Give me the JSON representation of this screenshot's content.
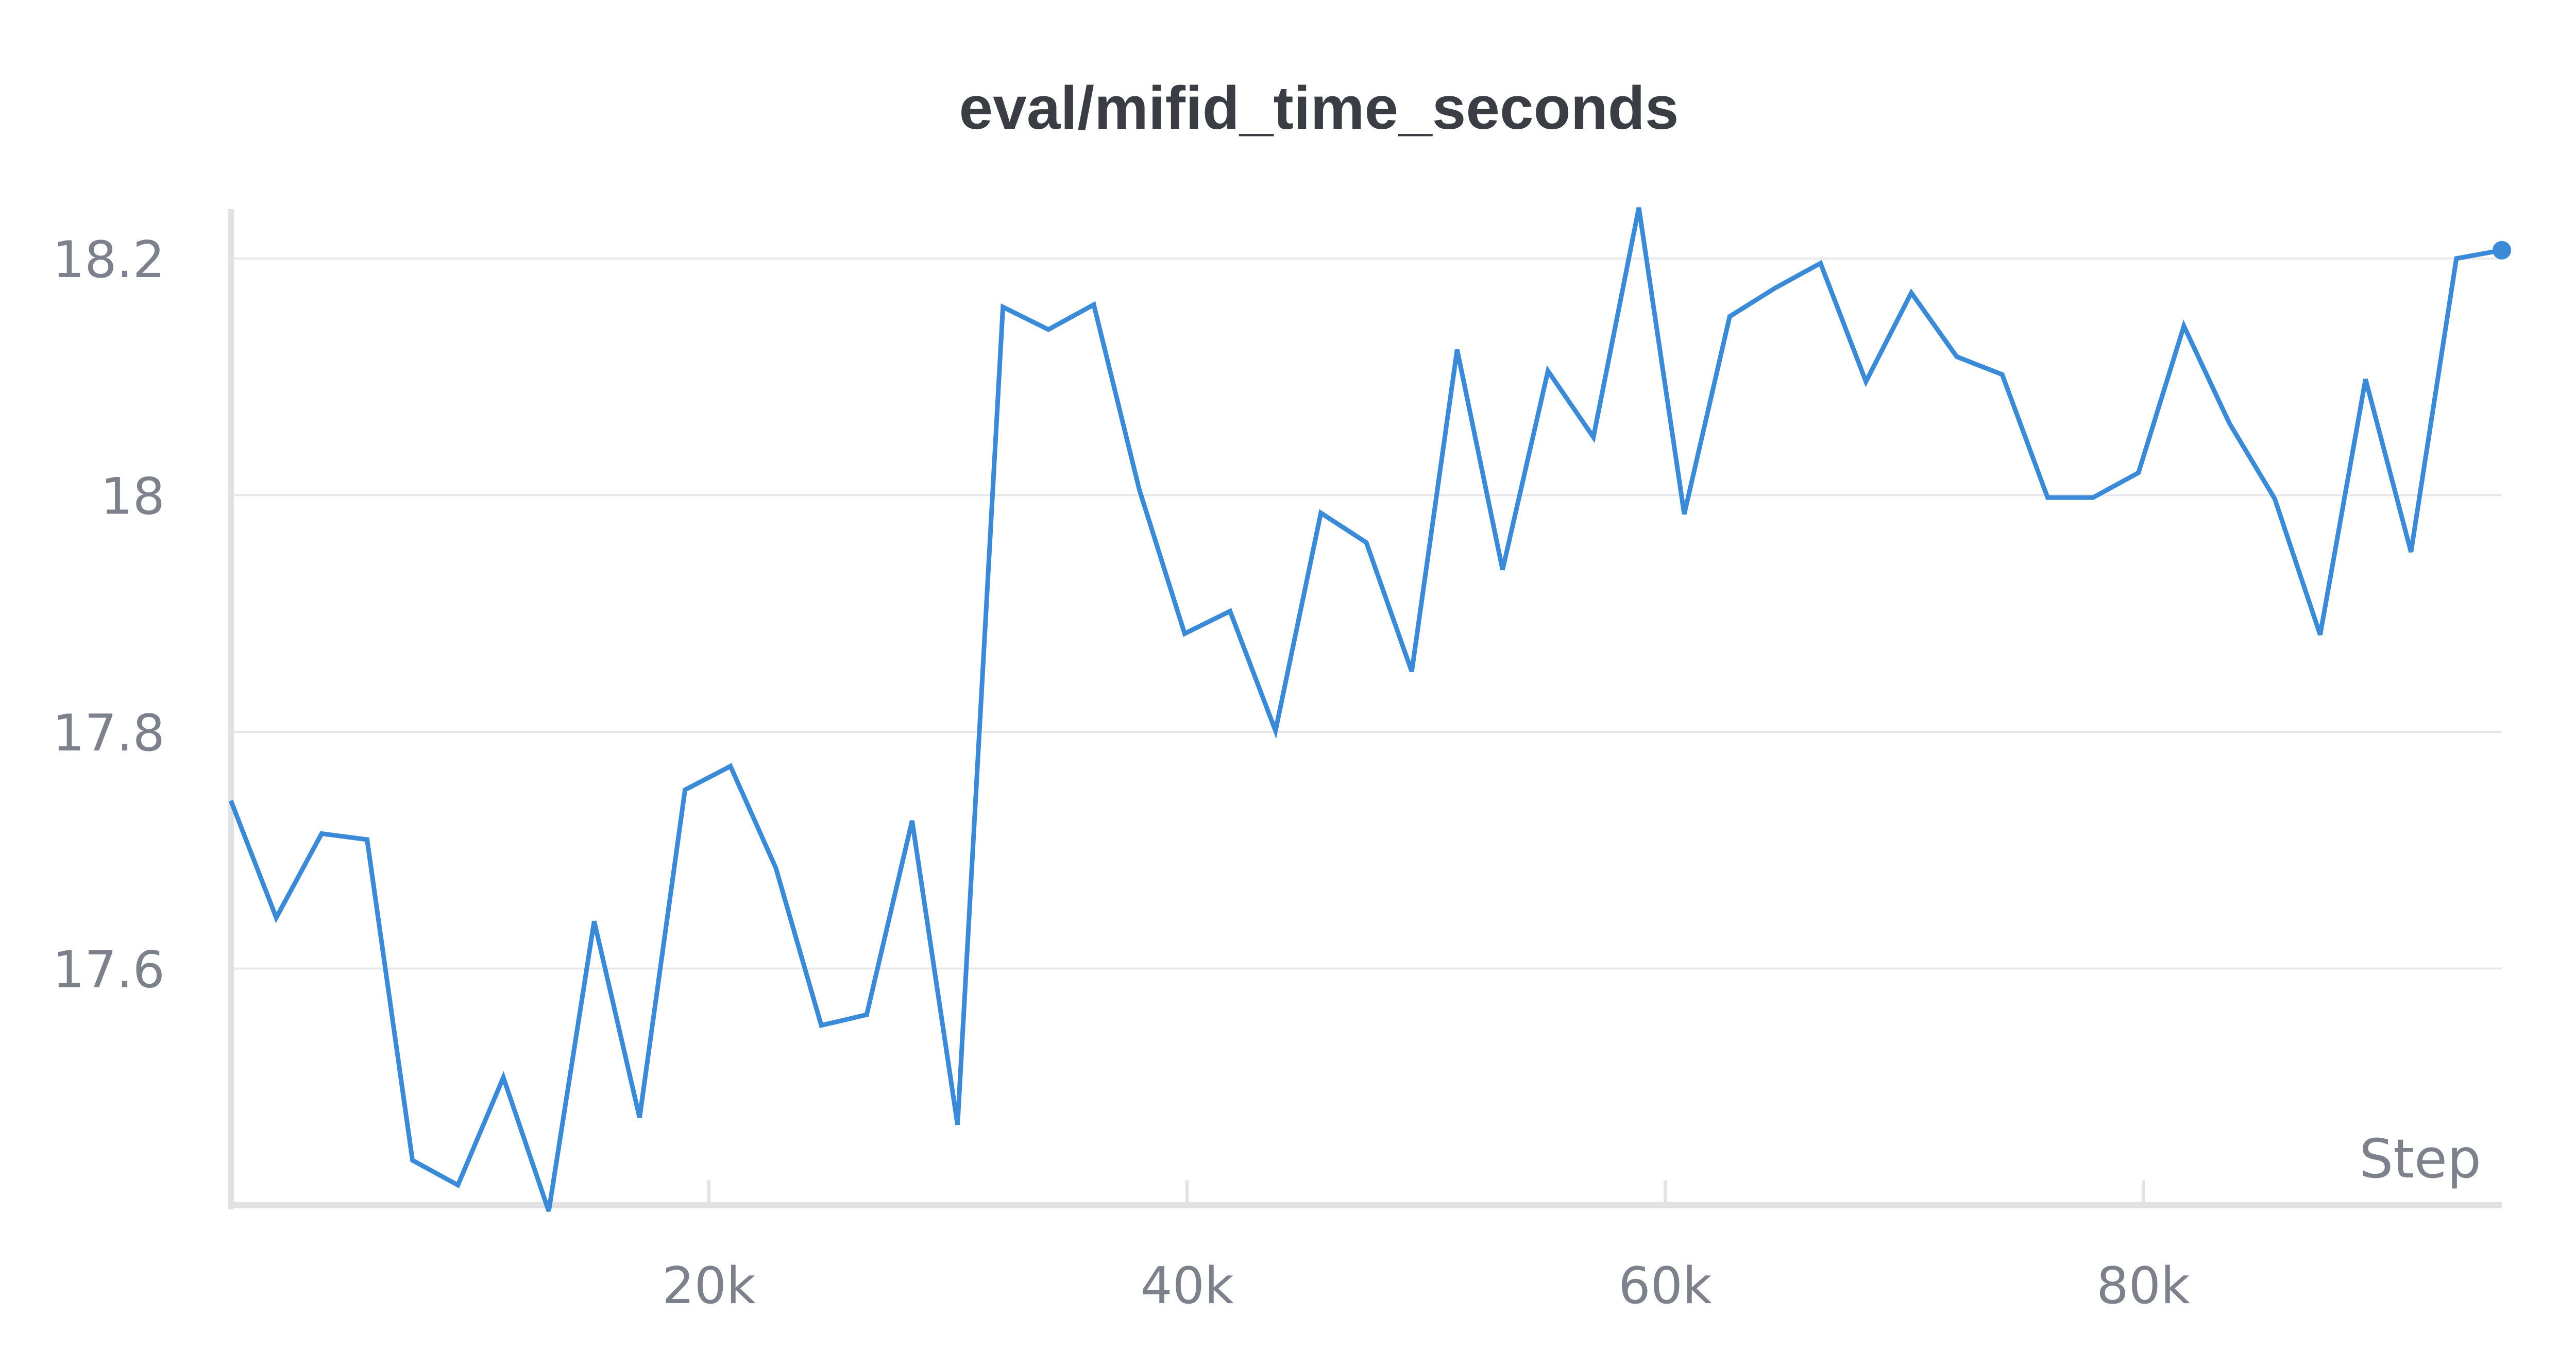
{
  "chart_data": {
    "type": "line",
    "title": "eval/mifid_time_seconds",
    "xlabel": "Step",
    "ylabel": "",
    "xlim": [
      0,
      95000
    ],
    "ylim": [
      17.4,
      18.24
    ],
    "grid": true,
    "x_ticks": [
      20000,
      40000,
      60000,
      80000
    ],
    "x_tick_labels": [
      "20k",
      "40k",
      "60k",
      "80k"
    ],
    "y_ticks": [
      17.6,
      17.8,
      18,
      18.2
    ],
    "y_tick_labels": [
      "17.6",
      "17.8",
      "18",
      "18.2"
    ],
    "color": "#3a8ad8",
    "series": [
      {
        "x": [
          0,
          1900,
          3800,
          5700,
          7600,
          9500,
          11400,
          13300,
          15200,
          17100,
          19000,
          20900,
          22800,
          24700,
          26600,
          28500,
          30400,
          32300,
          34200,
          36100,
          38000,
          39900,
          41800,
          43700,
          45600,
          47500,
          49400,
          51300,
          53200,
          55100,
          57000,
          58900,
          60800,
          62700,
          64600,
          66500,
          68400,
          70300,
          72200,
          74100,
          76000,
          77900,
          79800,
          81700,
          83600,
          85500,
          87400,
          89300,
          91200,
          93100,
          95000
        ],
        "y": [
          17.742,
          17.643,
          17.714,
          17.709,
          17.438,
          17.417,
          17.508,
          17.395,
          17.64,
          17.474,
          17.751,
          17.771,
          17.685,
          17.552,
          17.561,
          17.725,
          17.468,
          18.159,
          18.14,
          18.161,
          18.005,
          17.883,
          17.902,
          17.801,
          17.985,
          17.96,
          17.851,
          18.123,
          17.937,
          18.105,
          18.049,
          18.243,
          17.984,
          18.151,
          18.175,
          18.196,
          18.096,
          18.171,
          18.117,
          18.102,
          17.998,
          17.998,
          18.019,
          18.143,
          18.061,
          17.997,
          17.882,
          18.098,
          17.952,
          18.2,
          18.207
        ]
      }
    ]
  }
}
